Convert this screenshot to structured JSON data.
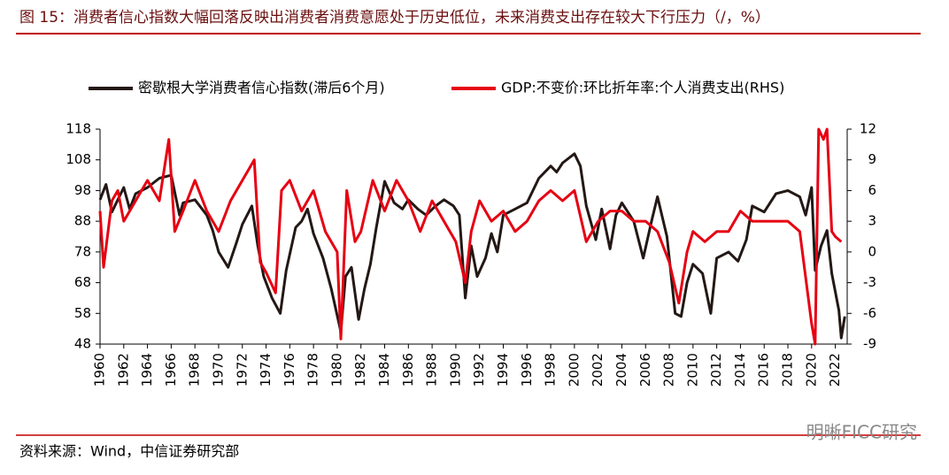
{
  "chart_data": {
    "type": "line",
    "title": "图 15：消费者信心指数大幅回落反映出消费者消费意愿处于历史低位，未来消费支出存在较大下行压力（/，%）",
    "source": "资料来源：Wind，中信证券研究部",
    "watermark": "明晰FICC研究",
    "xlim": [
      1960,
      2023
    ],
    "xticks": [
      1960,
      1962,
      1964,
      1966,
      1968,
      1970,
      1972,
      1974,
      1976,
      1978,
      1980,
      1982,
      1984,
      1986,
      1988,
      1990,
      1992,
      1994,
      1996,
      1998,
      2000,
      2002,
      2004,
      2006,
      2008,
      2010,
      2012,
      2014,
      2016,
      2018,
      2020,
      2022
    ],
    "ylim": [
      48,
      118
    ],
    "yticks": [
      48,
      58,
      68,
      78,
      88,
      98,
      108,
      118
    ],
    "y2lim": [
      -9,
      12
    ],
    "y2ticks": [
      -9,
      -6,
      -3,
      0,
      3,
      6,
      9,
      12
    ],
    "series": [
      {
        "name": "密歇根大学消费者信心指数(滞后6个月)",
        "color": "#231815",
        "x": [
          1960,
          1960.5,
          1961,
          1961.5,
          1962,
          1962.5,
          1963,
          1964,
          1965,
          1966,
          1966.7,
          1967,
          1968,
          1969,
          1969.5,
          1970,
          1970.8,
          1971.5,
          1972,
          1972.8,
          1973.3,
          1973.8,
          1974.5,
          1975.2,
          1975.7,
          1976.5,
          1977,
          1977.5,
          1978,
          1978.8,
          1979.5,
          1980.3,
          1980.7,
          1981.2,
          1981.8,
          1982.3,
          1982.8,
          1983.3,
          1984,
          1984.8,
          1985.5,
          1986,
          1986.8,
          1987.5,
          1988.3,
          1989,
          1989.8,
          1990.3,
          1990.8,
          1991.3,
          1991.8,
          1992.5,
          1993,
          1993.5,
          1994,
          1995,
          1996,
          1997,
          1998,
          1998.5,
          1999,
          2000,
          2000.5,
          2001,
          2001.8,
          2002.3,
          2003,
          2003.5,
          2004,
          2005,
          2005.8,
          2006.5,
          2007,
          2007.8,
          2008.5,
          2009,
          2009.5,
          2010,
          2010.8,
          2011.5,
          2012,
          2013,
          2013.8,
          2014.5,
          2015,
          2016,
          2017,
          2018,
          2019,
          2019.5,
          2020,
          2020.3,
          2020.8,
          2021.3,
          2021.7,
          2022.3,
          2022.5,
          2022.8
        ],
        "values": [
          95,
          100,
          91,
          95,
          99,
          92,
          97,
          99,
          102,
          103,
          90,
          94,
          95,
          90,
          85,
          78,
          73,
          81,
          87,
          93,
          80,
          70,
          63,
          58,
          72,
          86,
          88,
          92,
          84,
          76,
          66,
          52,
          70,
          73,
          56,
          66,
          74,
          86,
          101,
          94,
          92,
          95,
          92,
          90,
          93,
          95,
          93,
          90,
          63,
          80,
          70,
          76,
          84,
          78,
          90,
          92,
          94,
          102,
          106,
          104,
          107,
          110,
          106,
          93,
          82,
          92,
          79,
          90,
          94,
          88,
          76,
          88,
          96,
          83,
          58,
          57,
          68,
          74,
          71,
          58,
          76,
          78,
          75,
          82,
          93,
          91,
          97,
          98,
          96,
          90,
          99,
          72,
          80,
          85,
          71,
          59,
          50,
          57
        ]
      },
      {
        "name": "GDP:不变价:环比折年率:个人消费支出(RHS)",
        "color": "#e60012",
        "axis": "y2",
        "x": [
          1960,
          1960.3,
          1961,
          1961.5,
          1962,
          1963,
          1964,
          1965,
          1965.8,
          1966.3,
          1967,
          1968,
          1969,
          1970,
          1971,
          1972,
          1973,
          1973.5,
          1974,
          1974.8,
          1975.3,
          1976,
          1977,
          1978,
          1979,
          1980,
          1980.3,
          1980.8,
          1981.5,
          1982,
          1983,
          1984,
          1985,
          1986,
          1987,
          1988,
          1989,
          1990,
          1990.8,
          1991.3,
          1992,
          1993,
          1994,
          1995,
          1996,
          1997,
          1998,
          1999,
          2000,
          2001,
          2002,
          2003,
          2004,
          2005,
          2006,
          2007,
          2008,
          2008.8,
          2009.5,
          2010,
          2011,
          2012,
          2013,
          2014,
          2015,
          2016,
          2017,
          2018,
          2019,
          2020,
          2020.3,
          2020.6,
          2021,
          2021.3,
          2021.7,
          2022,
          2022.5
        ],
        "values": [
          4,
          -1.5,
          5,
          6,
          3,
          5,
          7,
          5,
          11,
          2,
          4,
          7,
          4,
          2,
          5,
          7,
          9,
          -1,
          -2,
          -4,
          6,
          7,
          4,
          6,
          2,
          0,
          -8.5,
          6,
          1,
          2,
          7,
          4,
          7,
          5,
          2,
          5,
          3,
          1,
          -3,
          2,
          5,
          3,
          4,
          2,
          3,
          5,
          6,
          5,
          6,
          1,
          3,
          4,
          4,
          3,
          3,
          2,
          -1,
          -5,
          0,
          2,
          1,
          2,
          2,
          4,
          3,
          3,
          3,
          3,
          2,
          -7,
          -9,
          12,
          11,
          12,
          2,
          1.5,
          1
        ]
      }
    ]
  }
}
